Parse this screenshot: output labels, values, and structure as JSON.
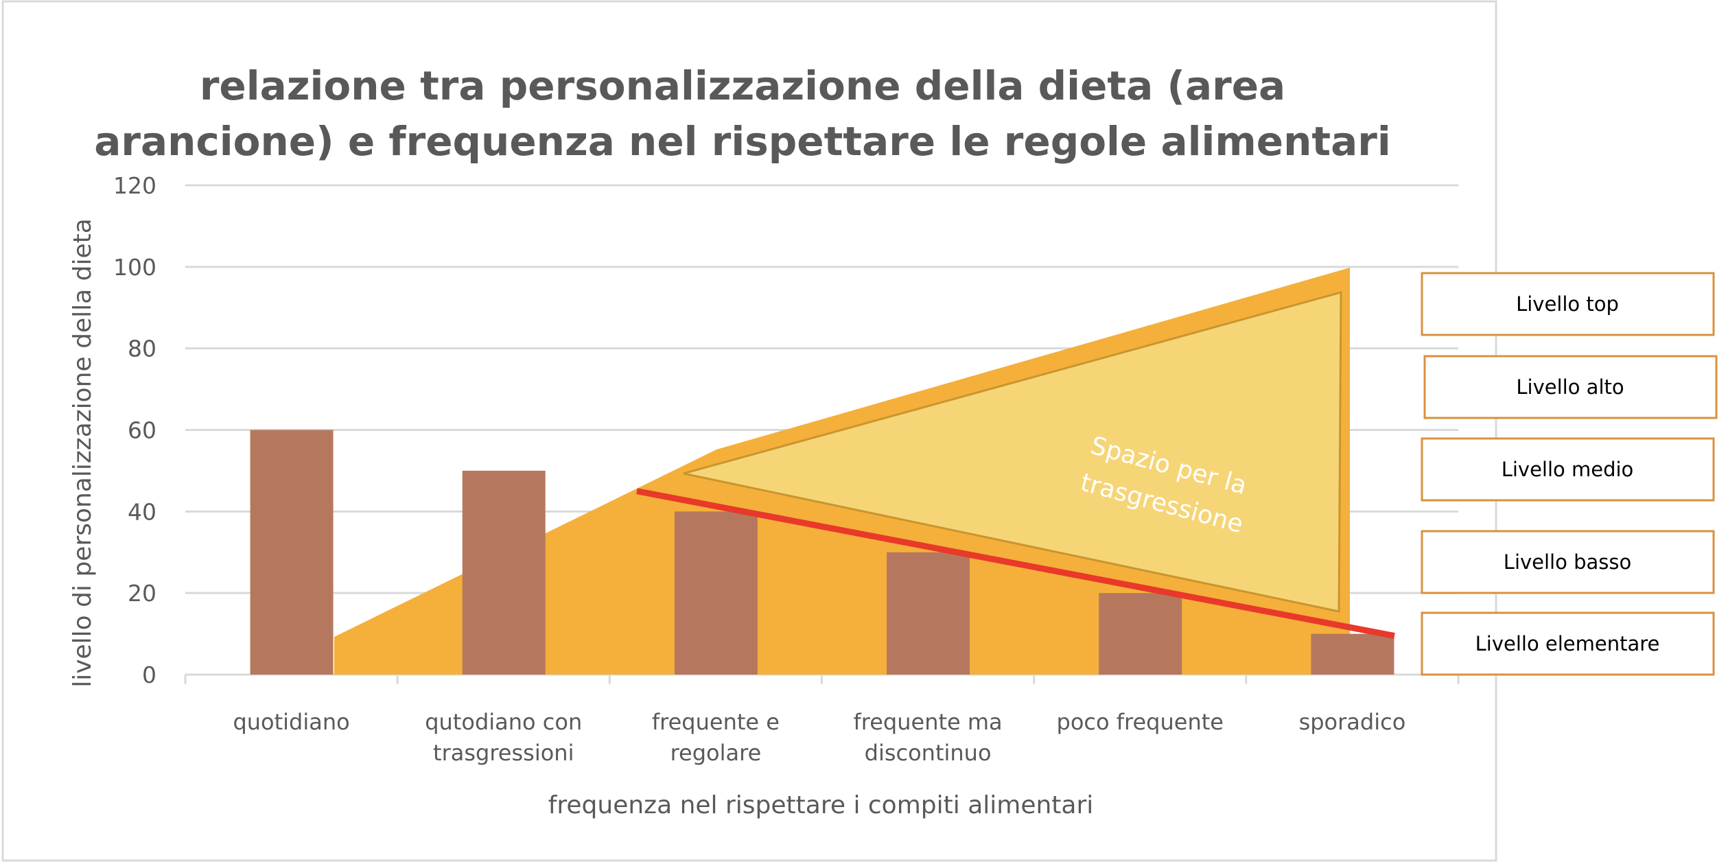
{
  "chart_data": {
    "type": "bar",
    "title": [
      "relazione tra personalizzazione  della dieta (area",
      "arancione) e frequenza nel rispettare le regole alimentari"
    ],
    "xlabel": "frequenza nel rispettare i compiti alimentari",
    "ylabel": "livello di personalizzazione della dieta",
    "categories": [
      [
        "quotidiano"
      ],
      [
        "qutodiano con",
        "trasgressioni"
      ],
      [
        "frequente e",
        "regolare"
      ],
      [
        "frequente ma",
        "discontinuo"
      ],
      [
        "poco frequente"
      ],
      [
        "sporadico"
      ]
    ],
    "values": [
      60,
      50,
      40,
      30,
      20,
      10
    ],
    "ylim": [
      0,
      120
    ],
    "yticks": [
      0,
      20,
      40,
      60,
      80,
      100,
      120
    ],
    "grid": true,
    "annotation_text": [
      "Spazio per la",
      "trasgressione"
    ],
    "trend_line": {
      "start": 45,
      "end": 9.5
    },
    "levels": [
      "Livello top",
      "Livello alto",
      "Livello medio",
      "Livello basso",
      "Livello elementare"
    ],
    "colors": {
      "bar": "#B5785F",
      "area": "#F4B03A",
      "inner_area": "#F6D577",
      "trend_line": "#E8392A",
      "level_border": "#D9913E",
      "grid": "#D9D9D9",
      "text": "#595959"
    }
  }
}
